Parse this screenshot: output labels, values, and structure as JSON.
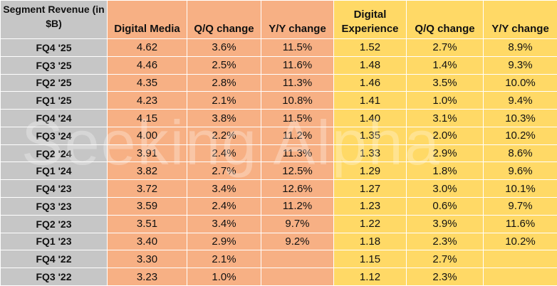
{
  "table": {
    "header": [
      "Segment Revenue (in $B)",
      "Digital Media",
      "Q/Q change",
      "Y/Y change",
      "Digital Experience",
      "Q/Q change",
      "Y/Y change"
    ],
    "rows": [
      [
        "FQ4 '25",
        "4.62",
        "3.6%",
        "11.5%",
        "1.52",
        "2.7%",
        "8.9%"
      ],
      [
        "FQ3 '25",
        "4.46",
        "2.5%",
        "11.6%",
        "1.48",
        "1.4%",
        "9.3%"
      ],
      [
        "FQ2 '25",
        "4.35",
        "2.8%",
        "11.3%",
        "1.46",
        "3.5%",
        "10.0%"
      ],
      [
        "FQ1 '25",
        "4.23",
        "2.1%",
        "10.8%",
        "1.41",
        "1.0%",
        "9.4%"
      ],
      [
        "FQ4 '24",
        "4.15",
        "3.8%",
        "11.5%",
        "1.40",
        "3.1%",
        "10.3%"
      ],
      [
        "FQ3 '24",
        "4.00",
        "2.2%",
        "11.2%",
        "1.35",
        "2.0%",
        "10.2%"
      ],
      [
        "FQ2 '24",
        "3.91",
        "2.4%",
        "11.3%",
        "1.33",
        "2.9%",
        "8.6%"
      ],
      [
        "FQ1 '24",
        "3.82",
        "2.7%",
        "12.5%",
        "1.29",
        "1.8%",
        "9.6%"
      ],
      [
        "FQ4 '23",
        "3.72",
        "3.4%",
        "12.6%",
        "1.27",
        "3.0%",
        "10.1%"
      ],
      [
        "FQ3 '23",
        "3.59",
        "2.4%",
        "11.2%",
        "1.23",
        "0.6%",
        "9.7%"
      ],
      [
        "FQ2 '23",
        "3.51",
        "3.4%",
        "9.7%",
        "1.22",
        "3.9%",
        "11.6%"
      ],
      [
        "FQ1 '23",
        "3.40",
        "2.9%",
        "9.2%",
        "1.18",
        "2.3%",
        "10.2%"
      ],
      [
        "FQ4 '22",
        "3.30",
        "2.1%",
        null,
        "1.15",
        "2.7%",
        null
      ],
      [
        "FQ3 '22",
        "3.23",
        "1.0%",
        null,
        "1.12",
        "2.3%",
        null
      ]
    ]
  },
  "watermark": "Seeking Alpha"
}
